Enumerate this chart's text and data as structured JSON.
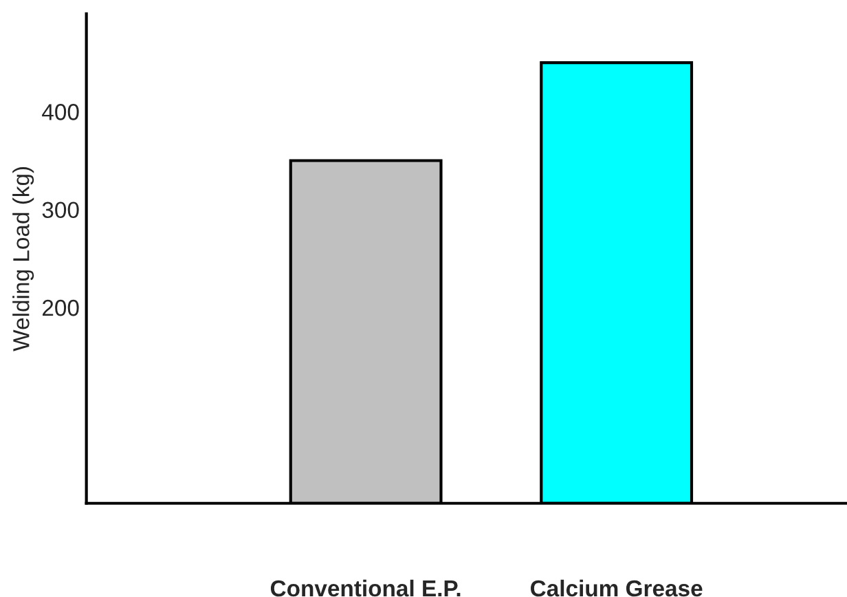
{
  "chart_data": {
    "type": "bar",
    "ylabel": "Welding Load (kg)",
    "categories": [
      "Conventional E.P.",
      "Calcium Grease"
    ],
    "values": [
      350,
      450
    ],
    "colors": [
      "#c0c0c0",
      "#00ffff"
    ],
    "ylim": [
      0,
      500
    ],
    "yticks": [
      200,
      300,
      400
    ],
    "grid": false,
    "legend": false
  }
}
